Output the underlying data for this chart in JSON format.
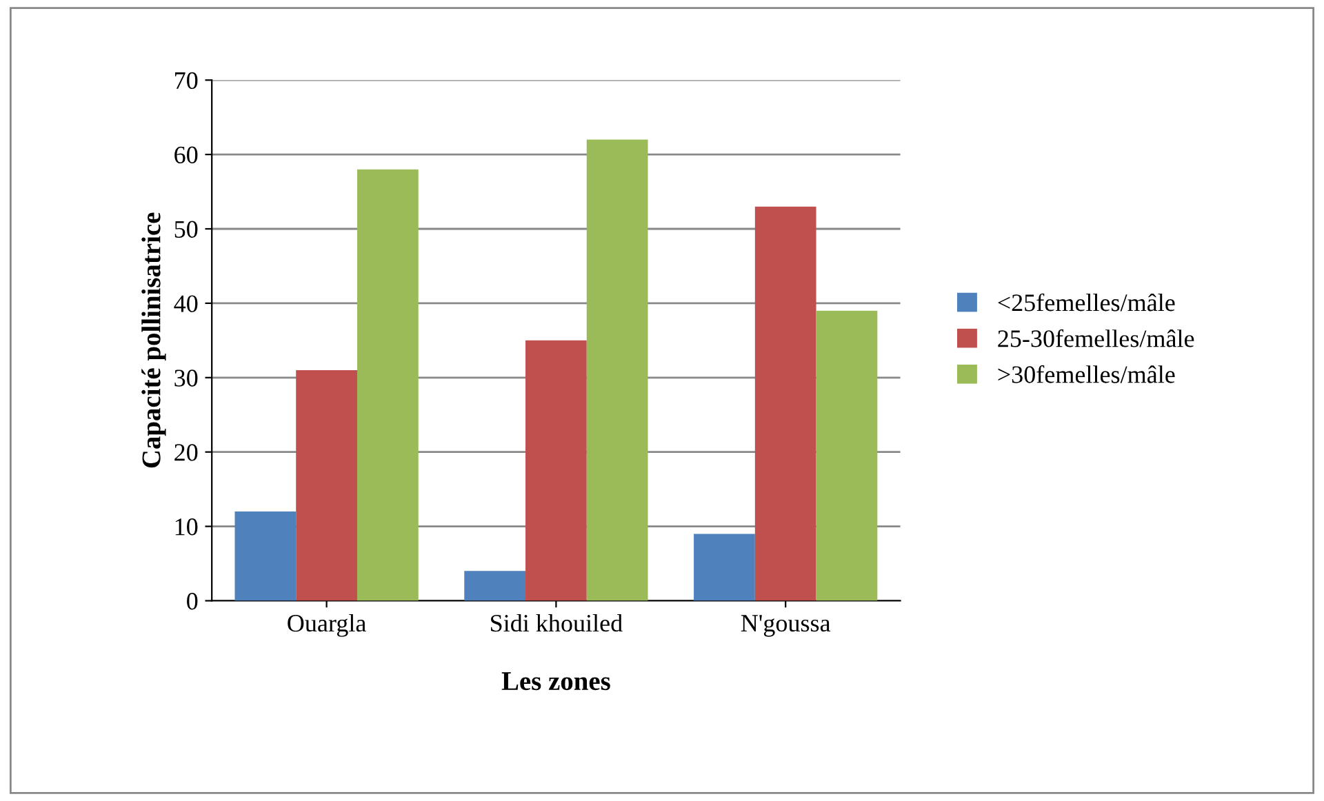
{
  "chart_data": {
    "type": "bar",
    "xlabel": "Les zones",
    "ylabel": "Capacité pollinisatrice",
    "categories": [
      "Ouargla",
      "Sidi khouiled",
      "N'goussa"
    ],
    "series": [
      {
        "name": "<25femelles/mâle",
        "color": "#4f81bd",
        "values": [
          12,
          4,
          9
        ]
      },
      {
        "name": "25-30femelles/mâle",
        "color": "#c0504d",
        "values": [
          31,
          35,
          53
        ]
      },
      {
        "name": ">30femelles/mâle",
        "color": "#9bbb59",
        "values": [
          58,
          62,
          39
        ]
      }
    ],
    "ylim": [
      0,
      70
    ],
    "yticks": [
      0,
      10,
      20,
      30,
      40,
      50,
      60,
      70
    ],
    "grid": "y",
    "legend": "right"
  }
}
